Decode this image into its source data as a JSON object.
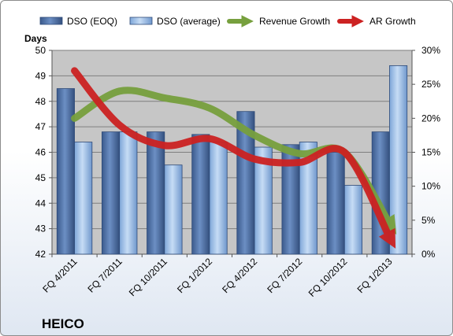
{
  "chart_data": {
    "type": "bar",
    "ylabel": "Days",
    "brand": "HEICO",
    "categories": [
      "FQ 4/2011",
      "FQ 7/2011",
      "FQ 10/2011",
      "FQ 1/2012",
      "FQ 4/2012",
      "FQ 7/2012",
      "FQ 10/2012",
      "FQ 1/2013"
    ],
    "ylim": [
      42,
      50
    ],
    "y_ticks": [
      "42",
      "43",
      "44",
      "45",
      "46",
      "47",
      "48",
      "49",
      "50"
    ],
    "y2lim": [
      0,
      30
    ],
    "y2_ticks": [
      "0%",
      "5%",
      "10%",
      "15%",
      "20%",
      "25%",
      "30%"
    ],
    "grid": "horizontal",
    "legend_position": "top",
    "bar_series": [
      {
        "name": "DSO (EOQ)",
        "values": [
          48.5,
          46.8,
          46.8,
          46.7,
          47.6,
          46.3,
          46.0,
          46.8
        ],
        "color": "#4a6da3"
      },
      {
        "name": "DSO (average)",
        "values": [
          46.4,
          46.8,
          45.5,
          46.4,
          46.2,
          46.4,
          44.7,
          49.4
        ],
        "color": "#8eb4e3"
      }
    ],
    "line_series": [
      {
        "name": "Revenue Growth",
        "axis": "secondary",
        "values": [
          20.0,
          24.0,
          23.0,
          21.5,
          17.5,
          14.8,
          15.0,
          4.5
        ],
        "color": "#77a03e"
      },
      {
        "name": "AR Growth",
        "axis": "secondary",
        "values": [
          27.0,
          19.0,
          16.0,
          17.0,
          14.0,
          13.5,
          15.0,
          2.5
        ],
        "color": "#cc2222"
      }
    ],
    "colors": {
      "plot_background": "#c6c6c6",
      "gridline": "#7f7f7f",
      "bar_outline": "#2e4a78"
    }
  }
}
